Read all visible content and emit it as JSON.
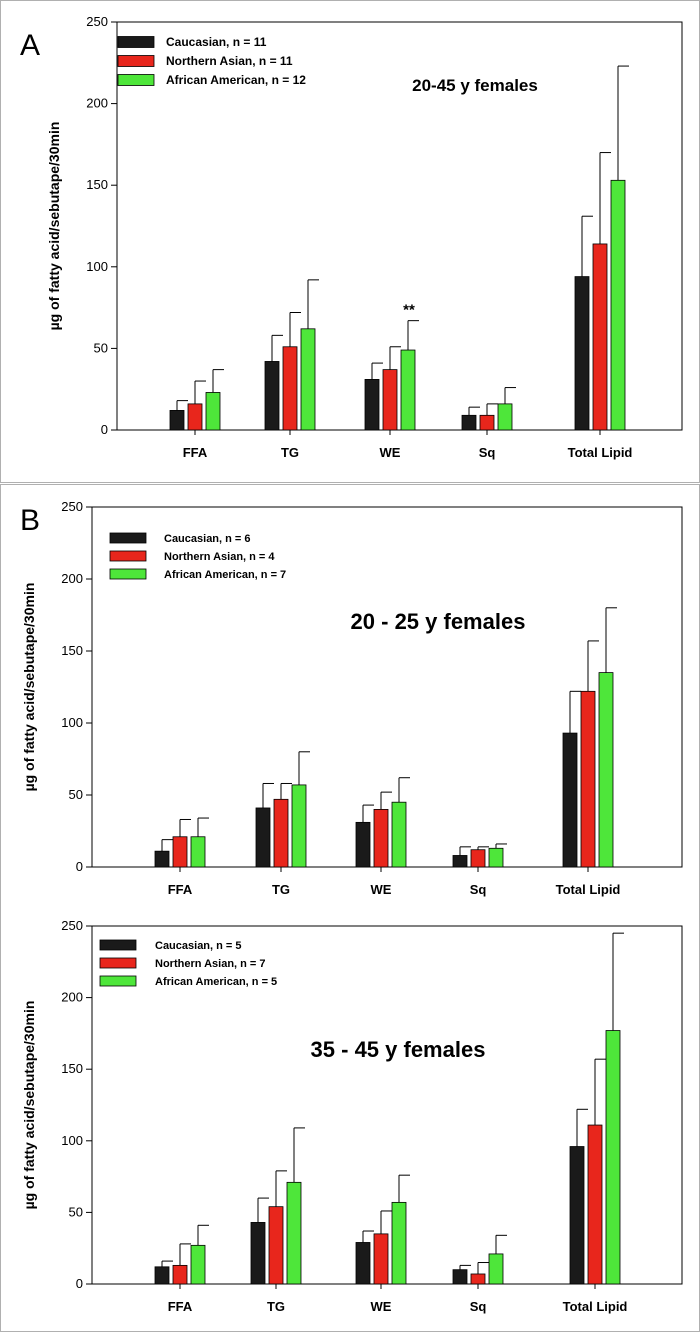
{
  "chart_data": [
    {
      "type": "bar",
      "panel_label": "A",
      "title": "20-45 y females",
      "ylabel": "µg of fatty acid/sebutape/30min",
      "xlabel": "",
      "ylim": [
        0,
        250
      ],
      "yticks": [
        "0",
        "50",
        "100",
        "150",
        "200",
        "250"
      ],
      "categories": [
        "FFA",
        "TG",
        "WE",
        "Sq",
        "Total Lipid"
      ],
      "series": [
        {
          "name": "Caucasian, n = 11",
          "color": "#1a1a1a",
          "values": [
            12,
            42,
            31,
            9,
            94
          ],
          "errors": [
            6,
            16,
            10,
            5,
            37
          ]
        },
        {
          "name": "Northern Asian, n = 11",
          "color": "#e8261c",
          "values": [
            16,
            51,
            37,
            9,
            114
          ],
          "errors": [
            14,
            21,
            14,
            7,
            56
          ]
        },
        {
          "name": "African American, n = 12",
          "color": "#4ee63a",
          "values": [
            23,
            62,
            49,
            16,
            153
          ],
          "errors": [
            14,
            30,
            18,
            10,
            70
          ]
        }
      ],
      "annotations": [
        {
          "text": "**",
          "category": "WE"
        }
      ]
    },
    {
      "type": "bar",
      "panel_label": "B",
      "title": "20 - 25 y females",
      "ylabel": "µg of fatty acid/sebutape/30min",
      "xlabel": "",
      "ylim": [
        0,
        250
      ],
      "yticks": [
        "0",
        "50",
        "100",
        "150",
        "200",
        "250"
      ],
      "categories": [
        "FFA",
        "TG",
        "WE",
        "Sq",
        "Total Lipid"
      ],
      "series": [
        {
          "name": "Caucasian, n = 6",
          "color": "#1a1a1a",
          "values": [
            11,
            41,
            31,
            8,
            93
          ],
          "errors": [
            8,
            17,
            12,
            6,
            29
          ]
        },
        {
          "name": "Northern Asian, n = 4",
          "color": "#e8261c",
          "values": [
            21,
            47,
            40,
            12,
            122
          ],
          "errors": [
            12,
            11,
            12,
            2,
            35
          ]
        },
        {
          "name": "African American, n = 7",
          "color": "#4ee63a",
          "values": [
            21,
            57,
            45,
            13,
            135
          ],
          "errors": [
            13,
            23,
            17,
            3,
            45
          ]
        }
      ],
      "annotations": []
    },
    {
      "type": "bar",
      "panel_label": "",
      "title": "35 - 45 y females",
      "ylabel": "µg of fatty acid/sebutape/30min",
      "xlabel": "",
      "ylim": [
        0,
        250
      ],
      "yticks": [
        "0",
        "50",
        "100",
        "150",
        "200",
        "250"
      ],
      "categories": [
        "FFA",
        "TG",
        "WE",
        "Sq",
        "Total Lipid"
      ],
      "series": [
        {
          "name": "Caucasian, n = 5",
          "color": "#1a1a1a",
          "values": [
            12,
            43,
            29,
            10,
            96
          ],
          "errors": [
            4,
            17,
            8,
            3,
            26
          ]
        },
        {
          "name": "Northern Asian, n = 7",
          "color": "#e8261c",
          "values": [
            13,
            54,
            35,
            7,
            111
          ],
          "errors": [
            15,
            25,
            16,
            8,
            46
          ]
        },
        {
          "name": "African American, n = 5",
          "color": "#4ee63a",
          "values": [
            27,
            71,
            57,
            21,
            177
          ],
          "errors": [
            14,
            38,
            19,
            13,
            68
          ]
        }
      ],
      "annotations": []
    }
  ]
}
